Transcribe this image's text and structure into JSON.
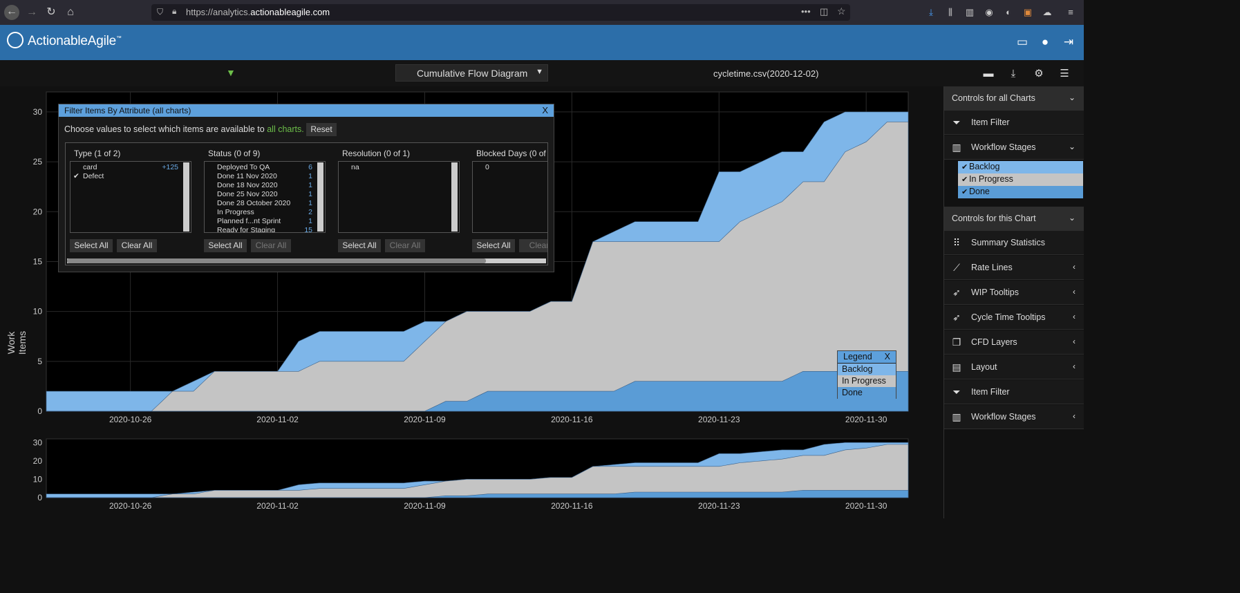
{
  "browser": {
    "url_prefix": "https://analytics.",
    "url_domain": "actionableagile.com",
    "url_suffix": ""
  },
  "app": {
    "logo_text": "ActionableAgile",
    "logo_tm": "™",
    "chart_selector": "Cumulative Flow Diagram",
    "filename": "cycletime.csv(2020-12-02)"
  },
  "colors": {
    "backlog": "#7eb6e9",
    "in_progress": "#c4c4c4",
    "done": "#5a9cd6",
    "header": "#2c6ea9",
    "accent_green": "#6dbf4a"
  },
  "filter_dialog": {
    "title": "Filter Items By Attribute (all charts)",
    "close": "X",
    "instruction": "Choose values to select which items are available to ",
    "instruction_link": "all charts.",
    "reset": "Reset",
    "columns": [
      {
        "title": "Type (1 of 2)",
        "items": [
          {
            "check": "",
            "name": "card",
            "count": "+125"
          },
          {
            "check": "✔",
            "name": "Defect",
            "count": ""
          }
        ],
        "select_all": "Select All",
        "clear_all": "Clear All",
        "clear_dim": false
      },
      {
        "title": "Status (0 of 9)",
        "items": [
          {
            "check": "",
            "name": "Deployed To QA",
            "count": "6"
          },
          {
            "check": "",
            "name": "Done 11 Nov 2020",
            "count": "1"
          },
          {
            "check": "",
            "name": "Done 18 Nov 2020",
            "count": "1"
          },
          {
            "check": "",
            "name": "Done 25 Nov 2020",
            "count": "1"
          },
          {
            "check": "",
            "name": "Done 28 October 2020",
            "count": "1"
          },
          {
            "check": "",
            "name": "In Progress",
            "count": "2"
          },
          {
            "check": "",
            "name": "Planned f...nt Sprint",
            "count": "1"
          },
          {
            "check": "",
            "name": "Ready for Staging",
            "count": "15"
          }
        ],
        "select_all": "Select All",
        "clear_all": "Clear All",
        "clear_dim": true
      },
      {
        "title": "Resolution (0 of 1)",
        "items": [
          {
            "check": "",
            "name": "na",
            "count": ""
          }
        ],
        "select_all": "Select All",
        "clear_all": "Clear All",
        "clear_dim": true
      },
      {
        "title": "Blocked Days (0 of",
        "items": [
          {
            "check": "",
            "name": "0",
            "count": ""
          }
        ],
        "select_all": "Select All",
        "clear_all": "Clear",
        "clear_dim": true
      }
    ]
  },
  "legend": {
    "title": "Legend",
    "close": "X",
    "items": [
      "Backlog",
      "In Progress",
      "Done"
    ]
  },
  "side_panel": {
    "all_charts_header": "Controls for all Charts",
    "item_filter": "Item Filter",
    "workflow_stages": "Workflow Stages",
    "stages": [
      "Backlog",
      "In Progress",
      "Done"
    ],
    "this_chart_header": "Controls for this Chart",
    "chart_controls": [
      "Summary Statistics",
      "Rate Lines",
      "WIP Tooltips",
      "Cycle Time Tooltips",
      "CFD Layers",
      "Layout",
      "Item Filter",
      "Workflow Stages"
    ]
  },
  "chart_data": {
    "type": "area",
    "title": "",
    "xlabel": "",
    "ylabel": "Work Items",
    "ylim": [
      0,
      32
    ],
    "y_ticks": [
      0,
      5,
      10,
      15,
      20,
      25,
      30
    ],
    "x_tick_labels": [
      "2020-10-26",
      "2020-11-02",
      "2020-11-09",
      "2020-11-16",
      "2020-11-23",
      "2020-11-30"
    ],
    "x_start": "2020-10-22",
    "x_end": "2020-12-02",
    "stacked_cumulative": true,
    "legend_position": "bottom-right",
    "series": [
      {
        "name": "Done",
        "x": [
          "2020-10-22",
          "2020-11-08",
          "2020-11-09",
          "2020-11-10",
          "2020-11-11",
          "2020-11-12",
          "2020-11-13",
          "2020-11-14",
          "2020-11-15",
          "2020-11-16",
          "2020-11-17",
          "2020-11-18",
          "2020-11-19",
          "2020-11-20",
          "2020-11-21",
          "2020-11-22",
          "2020-11-23",
          "2020-11-24",
          "2020-11-25",
          "2020-11-26",
          "2020-11-27",
          "2020-11-28",
          "2020-11-29",
          "2020-11-30",
          "2020-12-01",
          "2020-12-02"
        ],
        "values": [
          0,
          0,
          0,
          1,
          1,
          2,
          2,
          2,
          2,
          2,
          2,
          2,
          3,
          3,
          3,
          3,
          3,
          3,
          3,
          3,
          4,
          4,
          4,
          4,
          4,
          4
        ]
      },
      {
        "name": "In Progress",
        "x": [
          "2020-10-22",
          "2020-10-27",
          "2020-10-28",
          "2020-10-29",
          "2020-10-30",
          "2020-11-02",
          "2020-11-03",
          "2020-11-04",
          "2020-11-05",
          "2020-11-06",
          "2020-11-07",
          "2020-11-08",
          "2020-11-09",
          "2020-11-10",
          "2020-11-11",
          "2020-11-12",
          "2020-11-13",
          "2020-11-14",
          "2020-11-15",
          "2020-11-16",
          "2020-11-17",
          "2020-11-18",
          "2020-11-19",
          "2020-11-20",
          "2020-11-21",
          "2020-11-22",
          "2020-11-23",
          "2020-11-24",
          "2020-11-25",
          "2020-11-26",
          "2020-11-27",
          "2020-11-28",
          "2020-11-29",
          "2020-11-30",
          "2020-12-01",
          "2020-12-02"
        ],
        "values": [
          0,
          0,
          2,
          2,
          4,
          4,
          4,
          5,
          5,
          5,
          5,
          5,
          7,
          9,
          10,
          10,
          10,
          10,
          11,
          11,
          17,
          17,
          17,
          17,
          17,
          17,
          17,
          19,
          20,
          21,
          23,
          23,
          26,
          27,
          29,
          29
        ]
      },
      {
        "name": "Backlog",
        "x": [
          "2020-10-22",
          "2020-10-27",
          "2020-10-28",
          "2020-10-29",
          "2020-10-30",
          "2020-11-02",
          "2020-11-03",
          "2020-11-04",
          "2020-11-05",
          "2020-11-06",
          "2020-11-07",
          "2020-11-08",
          "2020-11-09",
          "2020-11-10",
          "2020-11-11",
          "2020-11-12",
          "2020-11-13",
          "2020-11-14",
          "2020-11-15",
          "2020-11-16",
          "2020-11-17",
          "2020-11-18",
          "2020-11-19",
          "2020-11-20",
          "2020-11-21",
          "2020-11-22",
          "2020-11-23",
          "2020-11-24",
          "2020-11-25",
          "2020-11-26",
          "2020-11-27",
          "2020-11-28",
          "2020-11-29",
          "2020-11-30",
          "2020-12-01",
          "2020-12-02"
        ],
        "values": [
          2,
          2,
          2,
          3,
          4,
          4,
          7,
          8,
          8,
          8,
          8,
          8,
          9,
          9,
          10,
          10,
          10,
          10,
          11,
          11,
          17,
          18,
          19,
          19,
          19,
          19,
          24,
          24,
          25,
          26,
          26,
          29,
          30,
          30,
          30,
          30
        ]
      }
    ],
    "overview": {
      "y_ticks": [
        0,
        10,
        20,
        30
      ],
      "ylim": [
        0,
        32
      ]
    }
  }
}
